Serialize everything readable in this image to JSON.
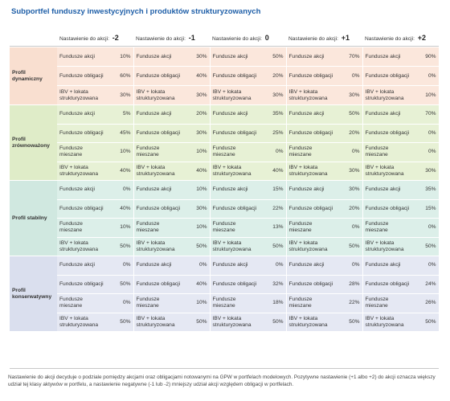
{
  "title": "Subportfel funduszy inwestycyjnych i produktów strukturyzowanych",
  "header_prefix": "Nastawienie do akcji:",
  "levels": [
    "-2",
    "-1",
    "0",
    "+1",
    "+2"
  ],
  "profiles": [
    {
      "name": "Profil dynamiczny",
      "rows": [
        {
          "label": "Fundusze akcji",
          "values": [
            "10%",
            "30%",
            "50%",
            "70%",
            "90%"
          ]
        },
        {
          "label": "Fundusze obligacji",
          "values": [
            "60%",
            "40%",
            "20%",
            "0%",
            "0%"
          ]
        },
        {
          "label": "IBV + lokata strukturyzowana",
          "values": [
            "30%",
            "30%",
            "30%",
            "30%",
            "10%"
          ]
        }
      ]
    },
    {
      "name": "Profil zrównoważony",
      "rows": [
        {
          "label": "Fundusze akcji",
          "values": [
            "5%",
            "20%",
            "35%",
            "50%",
            "70%"
          ]
        },
        {
          "label": "Fundusze obligacji",
          "values": [
            "45%",
            "30%",
            "25%",
            "20%",
            "0%"
          ]
        },
        {
          "label": "Fundusze mieszane",
          "values": [
            "10%",
            "10%",
            "0%",
            "0%",
            "0%"
          ]
        },
        {
          "label": "IBV + lokata strukturyzowana",
          "values": [
            "40%",
            "40%",
            "40%",
            "30%",
            "30%"
          ]
        }
      ]
    },
    {
      "name": "Profil stabilny",
      "rows": [
        {
          "label": "Fundusze akcji",
          "values": [
            "0%",
            "10%",
            "15%",
            "30%",
            "35%"
          ]
        },
        {
          "label": "Fundusze obligacji",
          "values": [
            "40%",
            "30%",
            "22%",
            "20%",
            "15%"
          ]
        },
        {
          "label": "Fundusze mieszane",
          "values": [
            "10%",
            "10%",
            "13%",
            "0%",
            "0%"
          ]
        },
        {
          "label": "IBV + lokata strukturyzowana",
          "values": [
            "50%",
            "50%",
            "50%",
            "50%",
            "50%"
          ]
        }
      ]
    },
    {
      "name": "Profil konserwatywny",
      "rows": [
        {
          "label": "Fundusze akcji",
          "values": [
            "0%",
            "0%",
            "0%",
            "0%",
            "0%"
          ]
        },
        {
          "label": "Fundusze obligacji",
          "values": [
            "50%",
            "40%",
            "32%",
            "28%",
            "24%"
          ]
        },
        {
          "label": "Fundusze mieszane",
          "values": [
            "0%",
            "10%",
            "18%",
            "22%",
            "26%"
          ]
        },
        {
          "label": "IBV + lokata strukturyzowana",
          "values": [
            "50%",
            "50%",
            "50%",
            "50%",
            "50%"
          ]
        }
      ]
    }
  ],
  "footnote": "Nastawienie do akcji decyduje o podziale pomiędzy akcjami oraz obligacjami notowanymi na GPW w portfelach modelowych. Pozytywne nastawienie (+1 albo +2) do akcji oznacza większy udział tej klasy aktywów w portfelu, a nastawienie negatywne (-1 lub -2) mniejszy udział akcji względem obligacji w portfelach."
}
